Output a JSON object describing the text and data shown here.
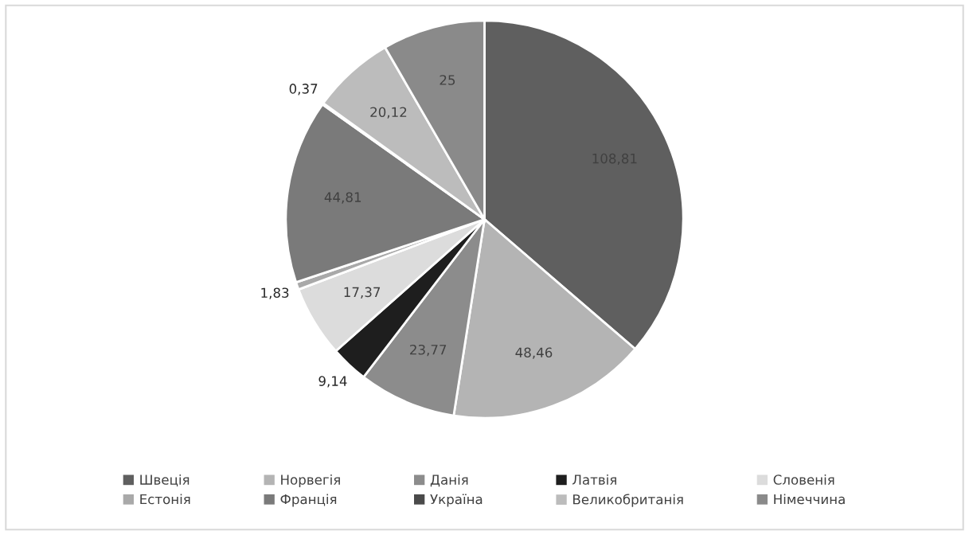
{
  "chart_data": {
    "type": "pie",
    "categories": [
      "Швеція",
      "Норвегія",
      "Данія",
      "Латвія",
      "Словенія",
      "Естонія",
      "Франція",
      "Україна",
      "Великобританія",
      "Німеччина"
    ],
    "values": [
      108.81,
      48.46,
      23.77,
      9.14,
      17.37,
      1.83,
      44.81,
      0.37,
      20.12,
      25
    ],
    "value_labels": [
      "108,81",
      "48,46",
      "23,77",
      "9,14",
      "17,37",
      "1,83",
      "44,81",
      "0,37",
      "20,12",
      "25"
    ],
    "colors": [
      "#5f5f5f",
      "#b4b4b4",
      "#8c8c8c",
      "#1e1e1e",
      "#dcdcdc",
      "#a9a9a9",
      "#7a7a7a",
      "#4a4a4a",
      "#bcbcbc",
      "#8a8a8a"
    ],
    "legend": "bottom"
  }
}
